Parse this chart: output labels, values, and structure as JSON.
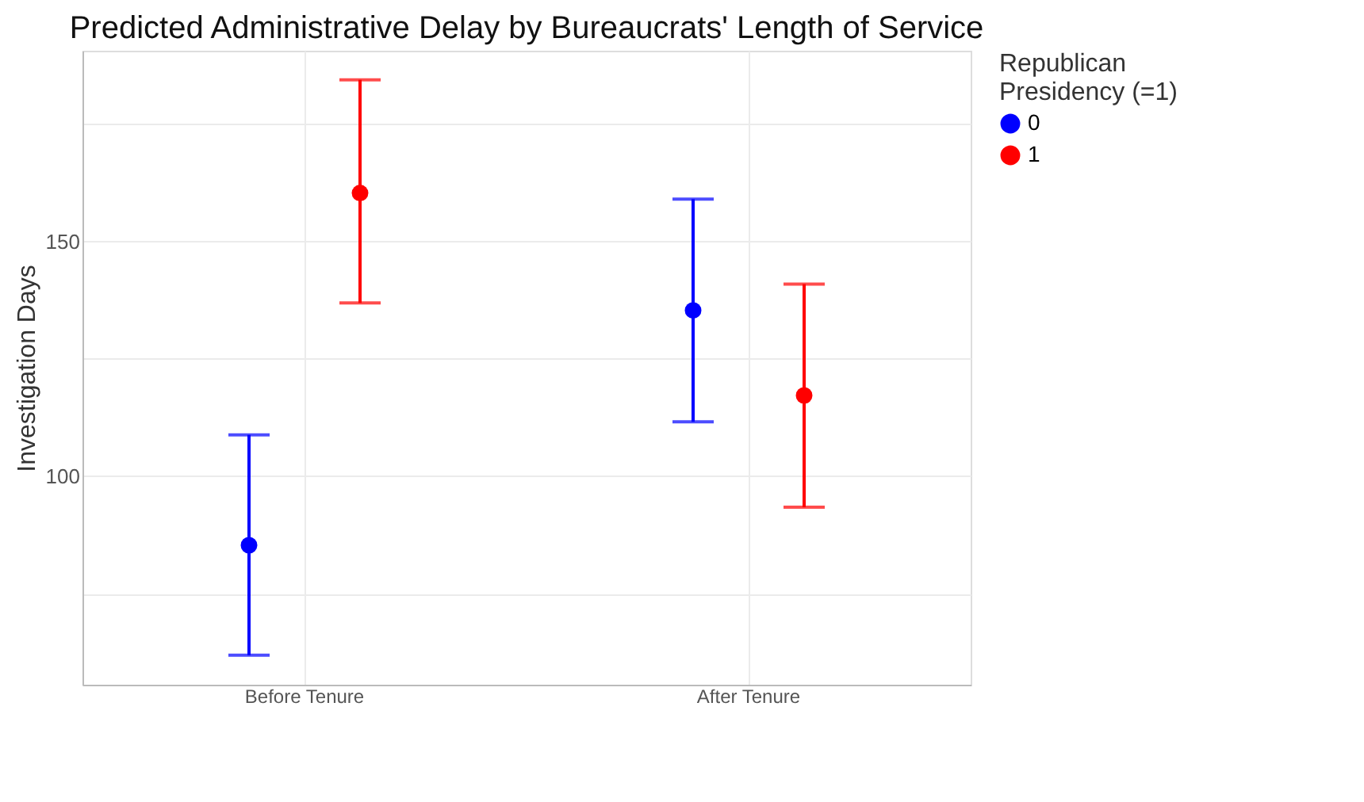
{
  "chart_data": {
    "type": "scatter",
    "title": "Predicted Administrative Delay by Bureaucrats' Length of Service",
    "ylabel": "Investigation Days",
    "legend_title": "Republican Presidency (=1)",
    "legend": "right",
    "grid": true,
    "marker": "circle",
    "categories": [
      "Before Tenure",
      "After Tenure"
    ],
    "ylim": [
      55.6,
      190.6
    ],
    "yticks": [
      {
        "value": 75,
        "label": null
      },
      100,
      {
        "value": 125,
        "label": null
      },
      150,
      {
        "value": 175,
        "label": null
      }
    ],
    "series": [
      {
        "name": "0",
        "color": "#0000ff",
        "values": [
          85.3,
          135.3
        ],
        "errors": [
          [
            61.9,
            108.8
          ],
          [
            111.6,
            159
          ]
        ]
      },
      {
        "name": "1",
        "color": "#ff0000",
        "values": [
          160.3,
          117.2
        ],
        "errors": [
          [
            136.9,
            184.4
          ],
          [
            93.4,
            140.9
          ]
        ]
      }
    ]
  }
}
